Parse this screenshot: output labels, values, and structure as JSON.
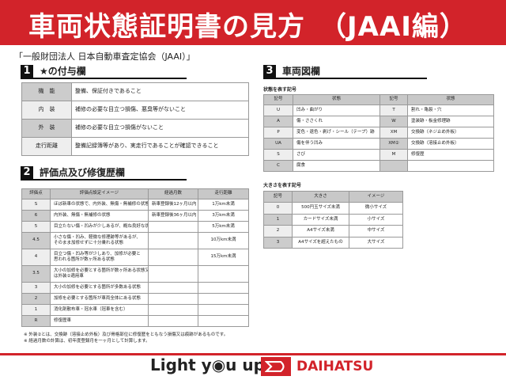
{
  "title": "車両状態証明書の見方　（JAAI編）",
  "subtitle": "「一般財団法人 日本自動車査定協会（JAAI）」",
  "section1": {
    "num": "1",
    "title": "★の付与欄",
    "rows": [
      {
        "label": "機　能",
        "text": "整備、保証付きであること"
      },
      {
        "label": "内　装",
        "text": "補修の必要な目立つ損傷、悪臭等がないこと"
      },
      {
        "label": "外　装",
        "text": "補修の必要な目立つ損傷がないこと"
      },
      {
        "label": "走行距離",
        "text": "整備記録簿等があり、実走行であることが確認できること"
      }
    ]
  },
  "section2": {
    "num": "2",
    "title": "評価点及び修復歴欄",
    "headers": [
      "評価点",
      "評価点設定イメージ",
      "経過月数",
      "走行距離"
    ],
    "rows": [
      [
        "S",
        "ほぼ新車の状態で、内外装、無傷・無補修の状態",
        "新車登録後12ヶ月以内",
        "1万km未満"
      ],
      [
        "6",
        "内外装、無傷・無補修の状態",
        "新車登録後36ヶ月以内",
        "3万km未満"
      ],
      [
        "5",
        "目立たない傷・凹みが少しあるが、概ね良好な状態",
        "",
        "5万km未満"
      ],
      [
        "4.5",
        "小さな傷・凹み、軽微な修理跡等があるが、\nそのまま加修せずに十分乗れる状態",
        "",
        "10万km未満"
      ],
      [
        "4",
        "目立つ傷・凹み等が少しあり、加修が必要と\n思われる箇所が数ヶ所ある状態",
        "",
        "15万km未満"
      ],
      [
        "3.5",
        "大小の加修を必要とする箇所が数ヶ所ある状態又\nは外装②適用車",
        "",
        ""
      ],
      [
        "3",
        "大小の加修を必要とする箇所が多数ある状態",
        "",
        ""
      ],
      [
        "2",
        "加修を必要とする箇所が車両全体にある状態",
        "",
        ""
      ],
      [
        "1",
        "消化剤散布車・冠水車（冠車を含む）",
        "",
        ""
      ],
      [
        "R",
        "修復歴車",
        "",
        ""
      ]
    ]
  },
  "section3": {
    "num": "3",
    "title": "車両図欄",
    "state_label": "状態を表す記号",
    "state_headers": [
      "記号",
      "状態",
      "記号",
      "状態"
    ],
    "state_rows": [
      [
        "U",
        "凹み・曲がり",
        "T",
        "割れ・亀裂・穴"
      ],
      [
        "A",
        "傷・ささくれ",
        "W",
        "塗装跡・板金修理跡"
      ],
      [
        "P",
        "変色・退色・剥げ・シール（テープ）跡",
        "XM",
        "交換跡（ネジ止め外板）"
      ],
      [
        "UA",
        "傷を伴う凹み",
        "XM②",
        "交換跡（溶接止め外板）"
      ],
      [
        "S",
        "さび",
        "M",
        "修復歴"
      ],
      [
        "C",
        "腐食",
        "",
        ""
      ]
    ],
    "size_label": "大きさを表す記号",
    "size_headers": [
      "記号",
      "大きさ",
      "イメージ"
    ],
    "size_rows": [
      [
        "0",
        "500円玉サイズ未満",
        "微小サイズ"
      ],
      [
        "1",
        "カードサイズ未満",
        "小サイズ"
      ],
      [
        "2",
        "A4サイズ未満",
        "中サイズ"
      ],
      [
        "3",
        "A4サイズを超えたもの",
        "大サイズ"
      ]
    ]
  },
  "notes": [
    "※ 外装②とは、交換跡（溶接止め外板）及び骨格部位に修復歴をともなう損傷又は痕跡があるものです。",
    "※ 経過月数の計算は、初年度登録月を一ヶ月として計算します。"
  ],
  "footer": {
    "slogan": "Light y◉u up",
    "brand": "DAIHATSU",
    "brand_color": "#d2232a"
  }
}
